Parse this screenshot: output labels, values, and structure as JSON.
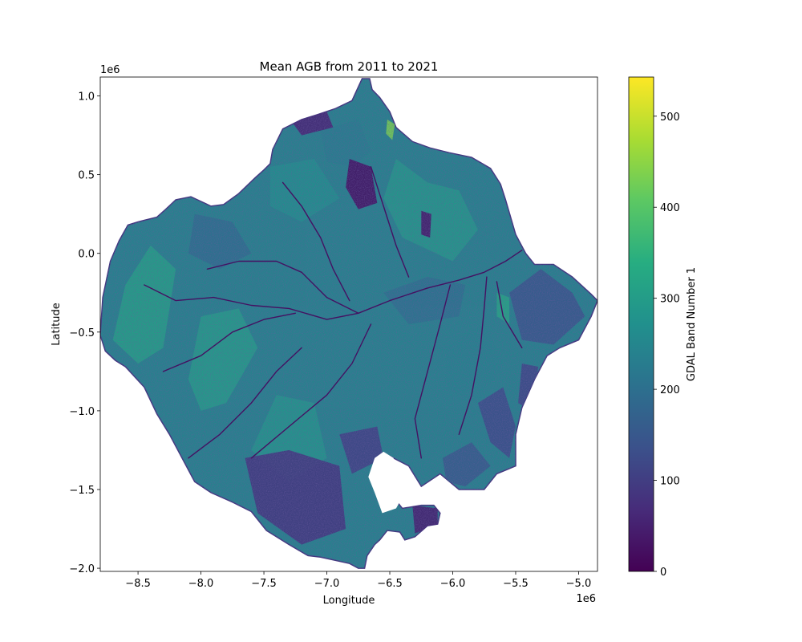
{
  "chart_data": {
    "type": "heatmap",
    "title": "Mean AGB from 2011 to 2021",
    "xlabel": "Longitude",
    "ylabel": "Latitude",
    "x_offset_label": "1e6",
    "y_offset_label": "1e6",
    "xlim": [
      -8.8,
      -4.85
    ],
    "ylim": [
      -2.02,
      1.12
    ],
    "xticks": [
      -8.5,
      -8.0,
      -7.5,
      -7.0,
      -6.5,
      -6.0,
      -5.5,
      -5.0
    ],
    "xtick_labels": [
      "−8.5",
      "−8.0",
      "−7.5",
      "−7.0",
      "−6.5",
      "−6.0",
      "−5.5",
      "−5.0"
    ],
    "yticks": [
      1.0,
      0.5,
      0.0,
      -0.5,
      -1.0,
      -1.5,
      -2.0
    ],
    "ytick_labels": [
      "1.0",
      "0.5",
      "0.0",
      "−0.5",
      "−1.0",
      "−1.5",
      "−2.0"
    ],
    "colorbar": {
      "label": "GDAL Band Number 1",
      "colormap": "viridis",
      "range": [
        0,
        543
      ],
      "ticks": [
        0,
        100,
        200,
        300,
        400,
        500
      ],
      "tick_labels": [
        "0",
        "100",
        "200",
        "300",
        "400",
        "500"
      ]
    },
    "region_outline": [
      [
        -8.8,
        -0.52
      ],
      [
        -8.78,
        -0.28
      ],
      [
        -8.72,
        -0.05
      ],
      [
        -8.65,
        0.08
      ],
      [
        -8.58,
        0.18
      ],
      [
        -8.5,
        0.2
      ],
      [
        -8.45,
        0.21
      ],
      [
        -8.35,
        0.23
      ],
      [
        -8.28,
        0.28
      ],
      [
        -8.2,
        0.34
      ],
      [
        -8.08,
        0.36
      ],
      [
        -7.92,
        0.3
      ],
      [
        -7.82,
        0.31
      ],
      [
        -7.7,
        0.38
      ],
      [
        -7.57,
        0.48
      ],
      [
        -7.5,
        0.53
      ],
      [
        -7.45,
        0.57
      ],
      [
        -7.43,
        0.66
      ],
      [
        -7.35,
        0.79
      ],
      [
        -7.2,
        0.85
      ],
      [
        -7.08,
        0.88
      ],
      [
        -6.93,
        0.92
      ],
      [
        -6.8,
        0.97
      ],
      [
        -6.76,
        1.04
      ],
      [
        -6.72,
        1.11
      ],
      [
        -6.66,
        1.11
      ],
      [
        -6.64,
        1.04
      ],
      [
        -6.58,
        0.99
      ],
      [
        -6.5,
        0.9
      ],
      [
        -6.45,
        0.8
      ],
      [
        -6.32,
        0.71
      ],
      [
        -6.18,
        0.67
      ],
      [
        -6.03,
        0.64
      ],
      [
        -5.85,
        0.61
      ],
      [
        -5.7,
        0.54
      ],
      [
        -5.62,
        0.44
      ],
      [
        -5.58,
        0.34
      ],
      [
        -5.5,
        0.12
      ],
      [
        -5.42,
        0.0
      ],
      [
        -5.35,
        -0.07
      ],
      [
        -5.2,
        -0.07
      ],
      [
        -5.05,
        -0.15
      ],
      [
        -4.9,
        -0.26
      ],
      [
        -4.85,
        -0.3
      ],
      [
        -4.9,
        -0.4
      ],
      [
        -5.0,
        -0.55
      ],
      [
        -5.15,
        -0.6
      ],
      [
        -5.25,
        -0.65
      ],
      [
        -5.35,
        -0.8
      ],
      [
        -5.45,
        -0.98
      ],
      [
        -5.5,
        -1.15
      ],
      [
        -5.5,
        -1.35
      ],
      [
        -5.65,
        -1.4
      ],
      [
        -5.75,
        -1.5
      ],
      [
        -5.95,
        -1.5
      ],
      [
        -6.1,
        -1.4
      ],
      [
        -6.25,
        -1.48
      ],
      [
        -6.35,
        -1.35
      ],
      [
        -6.52,
        -1.28
      ],
      [
        -6.55,
        -1.38
      ],
      [
        -6.5,
        -1.52
      ],
      [
        -6.4,
        -1.62
      ],
      [
        -6.25,
        -1.6
      ],
      [
        -6.15,
        -1.6
      ],
      [
        -6.1,
        -1.65
      ],
      [
        -6.12,
        -1.72
      ],
      [
        -6.2,
        -1.73
      ],
      [
        -6.3,
        -1.8
      ],
      [
        -6.38,
        -1.82
      ],
      [
        -6.42,
        -1.77
      ],
      [
        -6.52,
        -1.76
      ],
      [
        -6.58,
        -1.82
      ],
      [
        -6.62,
        -1.85
      ],
      [
        -6.68,
        -1.92
      ],
      [
        -6.7,
        -2.0
      ],
      [
        -6.75,
        -2.0
      ],
      [
        -6.82,
        -1.97
      ],
      [
        -7.05,
        -1.93
      ],
      [
        -7.15,
        -1.92
      ],
      [
        -7.3,
        -1.85
      ],
      [
        -7.48,
        -1.76
      ],
      [
        -7.6,
        -1.64
      ],
      [
        -7.75,
        -1.58
      ],
      [
        -7.92,
        -1.52
      ],
      [
        -8.05,
        -1.45
      ],
      [
        -8.15,
        -1.3
      ],
      [
        -8.25,
        -1.15
      ],
      [
        -8.35,
        -1.02
      ],
      [
        -8.45,
        -0.85
      ],
      [
        -8.6,
        -0.72
      ],
      [
        -8.68,
        -0.68
      ],
      [
        -8.76,
        -0.62
      ]
    ],
    "regions": [
      {
        "polygon": [
          [
            -8.7,
            -0.55
          ],
          [
            -8.6,
            -0.2
          ],
          [
            -8.4,
            0.05
          ],
          [
            -8.2,
            -0.1
          ],
          [
            -8.3,
            -0.6
          ],
          [
            -8.5,
            -0.7
          ]
        ],
        "value": 310
      },
      {
        "polygon": [
          [
            -8.1,
            -0.8
          ],
          [
            -8.0,
            -0.4
          ],
          [
            -7.7,
            -0.35
          ],
          [
            -7.55,
            -0.6
          ],
          [
            -7.8,
            -0.95
          ],
          [
            -8.0,
            -1.0
          ]
        ],
        "value": 300
      },
      {
        "polygon": [
          [
            -7.6,
            -1.25
          ],
          [
            -7.4,
            -0.9
          ],
          [
            -7.1,
            -0.95
          ],
          [
            -7.0,
            -1.3
          ],
          [
            -7.3,
            -1.45
          ]
        ],
        "value": 285
      },
      {
        "polygon": [
          [
            -6.45,
            0.6
          ],
          [
            -6.2,
            0.45
          ],
          [
            -5.95,
            0.4
          ],
          [
            -5.8,
            0.15
          ],
          [
            -6.0,
            -0.05
          ],
          [
            -6.4,
            0.1
          ],
          [
            -6.55,
            0.35
          ]
        ],
        "value": 290
      },
      {
        "polygon": [
          [
            -7.45,
            0.55
          ],
          [
            -7.1,
            0.6
          ],
          [
            -6.9,
            0.35
          ],
          [
            -7.2,
            0.2
          ],
          [
            -7.45,
            0.3
          ]
        ],
        "value": 270
      },
      {
        "polygon": [
          [
            -6.05,
            -0.6
          ],
          [
            -5.75,
            -0.45
          ],
          [
            -5.6,
            -0.7
          ],
          [
            -5.8,
            -0.95
          ],
          [
            -6.05,
            -0.85
          ]
        ],
        "value": 240
      },
      {
        "polygon": [
          [
            -8.05,
            0.25
          ],
          [
            -7.75,
            0.2
          ],
          [
            -7.6,
            0.0
          ],
          [
            -7.85,
            -0.1
          ],
          [
            -8.1,
            0.0
          ]
        ],
        "value": 200
      },
      {
        "polygon": [
          [
            -5.55,
            -0.25
          ],
          [
            -5.3,
            -0.1
          ],
          [
            -5.05,
            -0.25
          ],
          [
            -4.95,
            -0.4
          ],
          [
            -5.2,
            -0.58
          ],
          [
            -5.45,
            -0.55
          ]
        ],
        "value": 150
      },
      {
        "polygon": [
          [
            -7.05,
            0.78
          ],
          [
            -6.75,
            0.85
          ],
          [
            -6.65,
            0.65
          ],
          [
            -6.8,
            0.55
          ],
          [
            -7.0,
            0.58
          ]
        ],
        "value": 230
      },
      {
        "polygon": [
          [
            -6.55,
            -0.25
          ],
          [
            -6.2,
            -0.15
          ],
          [
            -5.9,
            -0.2
          ],
          [
            -5.95,
            -0.4
          ],
          [
            -6.35,
            -0.45
          ]
        ],
        "value": 205
      },
      {
        "polygon": [
          [
            -5.45,
            -0.7
          ],
          [
            -5.32,
            -0.72
          ],
          [
            -5.38,
            -1.0
          ],
          [
            -5.48,
            -0.95
          ]
        ],
        "value": 120
      },
      {
        "polygon": [
          [
            -7.65,
            -1.3
          ],
          [
            -7.3,
            -1.25
          ],
          [
            -6.9,
            -1.35
          ],
          [
            -6.85,
            -1.75
          ],
          [
            -7.2,
            -1.85
          ],
          [
            -7.55,
            -1.65
          ]
        ],
        "value": 90
      },
      {
        "polygon": [
          [
            -6.9,
            -1.15
          ],
          [
            -6.6,
            -1.1
          ],
          [
            -6.55,
            -1.3
          ],
          [
            -6.8,
            -1.4
          ]
        ],
        "value": 110
      },
      {
        "polygon": [
          [
            -6.82,
            0.6
          ],
          [
            -6.65,
            0.55
          ],
          [
            -6.6,
            0.32
          ],
          [
            -6.75,
            0.28
          ],
          [
            -6.85,
            0.42
          ]
        ],
        "value": 30
      },
      {
        "polygon": [
          [
            -6.25,
            0.27
          ],
          [
            -6.17,
            0.25
          ],
          [
            -6.18,
            0.1
          ],
          [
            -6.25,
            0.12
          ]
        ],
        "value": 40
      },
      {
        "polygon": [
          [
            -7.3,
            0.86
          ],
          [
            -7.0,
            0.9
          ],
          [
            -6.95,
            0.8
          ],
          [
            -7.2,
            0.75
          ]
        ],
        "value": 60
      },
      {
        "polygon": [
          [
            -6.32,
            -1.6
          ],
          [
            -6.12,
            -1.62
          ],
          [
            -6.12,
            -1.72
          ],
          [
            -6.3,
            -1.78
          ]
        ],
        "value": 50
      },
      {
        "polygon": [
          [
            -6.08,
            -1.3
          ],
          [
            -5.85,
            -1.2
          ],
          [
            -5.7,
            -1.35
          ],
          [
            -5.9,
            -1.48
          ],
          [
            -6.05,
            -1.45
          ]
        ],
        "value": 160
      },
      {
        "polygon": [
          [
            -5.8,
            -0.95
          ],
          [
            -5.6,
            -0.85
          ],
          [
            -5.5,
            -1.1
          ],
          [
            -5.55,
            -1.3
          ],
          [
            -5.7,
            -1.2
          ]
        ],
        "value": 130
      },
      {
        "polygon": [
          [
            -5.65,
            -0.25
          ],
          [
            -5.55,
            -0.28
          ],
          [
            -5.55,
            -0.45
          ],
          [
            -5.65,
            -0.4
          ]
        ],
        "value": 320
      },
      {
        "polygon": [
          [
            -6.52,
            0.85
          ],
          [
            -6.46,
            0.82
          ],
          [
            -6.48,
            0.72
          ],
          [
            -6.53,
            0.76
          ]
        ],
        "value": 430
      }
    ],
    "rivers": [
      [
        [
          -8.45,
          -0.2
        ],
        [
          -8.2,
          -0.3
        ],
        [
          -7.9,
          -0.28
        ],
        [
          -7.6,
          -0.33
        ],
        [
          -7.3,
          -0.35
        ],
        [
          -7.0,
          -0.42
        ],
        [
          -6.75,
          -0.38
        ],
        [
          -6.5,
          -0.3
        ],
        [
          -6.2,
          -0.22
        ],
        [
          -5.95,
          -0.17
        ],
        [
          -5.75,
          -0.12
        ],
        [
          -5.58,
          -0.05
        ],
        [
          -5.45,
          0.02
        ]
      ],
      [
        [
          -7.95,
          -0.1
        ],
        [
          -7.7,
          -0.05
        ],
        [
          -7.4,
          -0.05
        ],
        [
          -7.2,
          -0.12
        ],
        [
          -7.0,
          -0.28
        ],
        [
          -6.75,
          -0.38
        ]
      ],
      [
        [
          -7.35,
          0.45
        ],
        [
          -7.2,
          0.3
        ],
        [
          -7.05,
          0.1
        ],
        [
          -6.95,
          -0.1
        ],
        [
          -6.82,
          -0.3
        ]
      ],
      [
        [
          -7.6,
          -1.3
        ],
        [
          -7.3,
          -1.1
        ],
        [
          -7.0,
          -0.9
        ],
        [
          -6.8,
          -0.7
        ],
        [
          -6.65,
          -0.45
        ]
      ],
      [
        [
          -6.25,
          -1.3
        ],
        [
          -6.3,
          -1.05
        ],
        [
          -6.2,
          -0.75
        ],
        [
          -6.1,
          -0.45
        ],
        [
          -6.02,
          -0.2
        ]
      ],
      [
        [
          -5.95,
          -1.15
        ],
        [
          -5.85,
          -0.9
        ],
        [
          -5.78,
          -0.6
        ],
        [
          -5.75,
          -0.35
        ],
        [
          -5.73,
          -0.15
        ]
      ],
      [
        [
          -8.3,
          -0.75
        ],
        [
          -8.0,
          -0.65
        ],
        [
          -7.75,
          -0.5
        ],
        [
          -7.5,
          -0.42
        ],
        [
          -7.25,
          -0.38
        ]
      ],
      [
        [
          -5.45,
          -0.6
        ],
        [
          -5.6,
          -0.4
        ],
        [
          -5.65,
          -0.18
        ]
      ],
      [
        [
          -8.1,
          -1.3
        ],
        [
          -7.85,
          -1.15
        ],
        [
          -7.6,
          -0.95
        ],
        [
          -7.4,
          -0.75
        ],
        [
          -7.2,
          -0.6
        ]
      ],
      [
        [
          -6.65,
          0.55
        ],
        [
          -6.55,
          0.3
        ],
        [
          -6.45,
          0.05
        ],
        [
          -6.35,
          -0.15
        ]
      ]
    ],
    "water_gaps": [
      [
        [
          -6.62,
          -1.3
        ],
        [
          -6.55,
          -1.26
        ],
        [
          -6.47,
          -1.3
        ],
        [
          -6.45,
          -1.42
        ],
        [
          -6.38,
          -1.52
        ],
        [
          -6.45,
          -1.62
        ],
        [
          -6.56,
          -1.65
        ],
        [
          -6.62,
          -1.52
        ],
        [
          -6.67,
          -1.42
        ]
      ]
    ]
  }
}
